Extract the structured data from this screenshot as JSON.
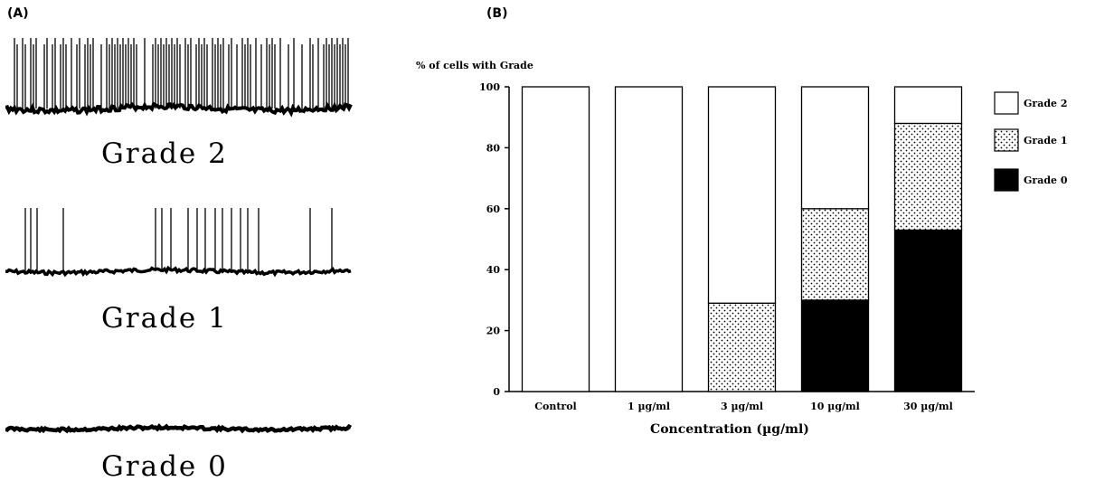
{
  "panel_a": {
    "label": "(A)",
    "traces": [
      {
        "caption": "Grade 2"
      },
      {
        "caption": "Grade 1"
      },
      {
        "caption": "Grade 0"
      }
    ]
  },
  "panel_b": {
    "label": "(B)"
  },
  "chart_data": {
    "type": "bar",
    "stacked": true,
    "title": "% of cells with Grade",
    "xlabel": "Concentration (µg/ml)",
    "ylabel": "% of cells with Grade",
    "ylim": [
      0,
      100
    ],
    "yticks": [
      0,
      20,
      40,
      60,
      80,
      100
    ],
    "grid": false,
    "legend_position": "right",
    "categories": [
      "Control",
      "1 µg/ml",
      "3 µg/ml",
      "10 µg/ml",
      "30 µg/ml"
    ],
    "series": [
      {
        "name": "Grade 0",
        "fill": "solid",
        "color": "#000000",
        "values": [
          0,
          0,
          0,
          30,
          53
        ]
      },
      {
        "name": "Grade 1",
        "fill": "dotted",
        "color": "#ffffff",
        "values": [
          0,
          0,
          29,
          30,
          35
        ]
      },
      {
        "name": "Grade 2",
        "fill": "white",
        "color": "#ffffff",
        "values": [
          100,
          100,
          71,
          40,
          12
        ]
      }
    ],
    "legend_order": [
      "Grade 2",
      "Grade 1",
      "Grade 0"
    ]
  }
}
